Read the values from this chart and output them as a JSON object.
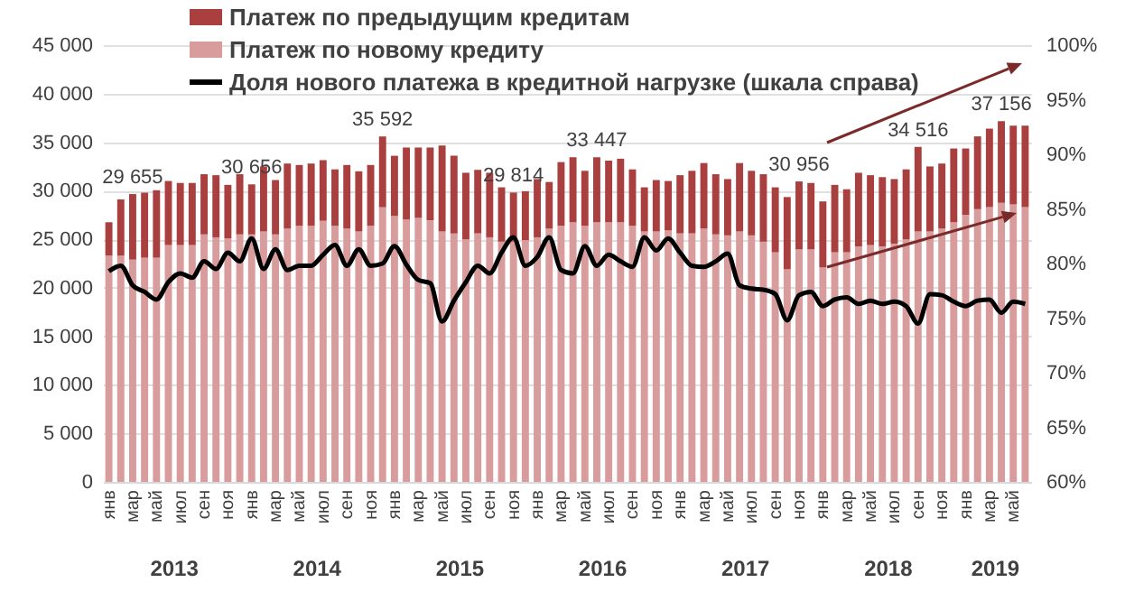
{
  "chart_data": {
    "type": "bar",
    "stacked": true,
    "categories": [
      "янв",
      null,
      "мар",
      null,
      "май",
      null,
      "июл",
      null,
      "сен",
      null,
      "ноя",
      null,
      "янв",
      null,
      "мар",
      null,
      "май",
      null,
      "июл",
      null,
      "сен",
      null,
      "ноя",
      null,
      "янв",
      null,
      "мар",
      null,
      "май",
      null,
      "июл",
      null,
      "сен",
      null,
      "ноя",
      null,
      "янв",
      null,
      "мар",
      null,
      "май",
      null,
      "июл",
      null,
      "сен",
      null,
      "ноя",
      null,
      "янв",
      null,
      "мар",
      null,
      "май",
      null,
      "июл",
      null,
      "сен",
      null,
      "ноя",
      null,
      "янв",
      null,
      "мар",
      null,
      "май",
      null,
      "июл",
      null,
      "сен",
      null,
      "ноя",
      null,
      "янв",
      null,
      "мар",
      null,
      "май",
      null
    ],
    "series": [
      {
        "name": "Платеж по новому кредиту",
        "color": "#d99c9c",
        "values": [
          23300,
          23300,
          22900,
          23100,
          23100,
          24400,
          24400,
          24400,
          25500,
          25200,
          25100,
          25500,
          25500,
          25800,
          25500,
          26100,
          26400,
          26400,
          26900,
          26400,
          26100,
          25800,
          26400,
          28300,
          27400,
          27050,
          27200,
          26950,
          25800,
          25600,
          25000,
          25600,
          25200,
          24750,
          24750,
          24900,
          25200,
          26100,
          26400,
          26750,
          26400,
          26750,
          26750,
          26750,
          26400,
          25800,
          25800,
          25900,
          25600,
          25600,
          26100,
          25500,
          25400,
          25800,
          25400,
          24750,
          23650,
          21900,
          23950,
          23950,
          22100,
          23650,
          23650,
          24250,
          24400,
          24250,
          24550,
          25000,
          25800,
          25800,
          26100,
          26750,
          27500,
          28100,
          28300,
          28750,
          28600,
          28300
        ]
      },
      {
        "name": "Платеж по предыдущим кредитам",
        "color": "#a9403f",
        "values": [
          3450,
          5800,
          6755,
          6700,
          6950,
          6600,
          6400,
          6400,
          6200,
          6400,
          5500,
          6200,
          5156,
          6700,
          5600,
          6700,
          6250,
          6400,
          6250,
          5800,
          6550,
          6200,
          6250,
          7292,
          6200,
          7400,
          7250,
          7500,
          8850,
          8000,
          6850,
          6550,
          6650,
          5600,
          5064,
          5050,
          6000,
          4800,
          6550,
          6700,
          5650,
          6697,
          6350,
          6550,
          5800,
          4550,
          5300,
          5100,
          6000,
          6450,
          6750,
          6200,
          5800,
          7050,
          6650,
          6950,
          6700,
          7450,
          7006,
          6850,
          6800,
          6950,
          6500,
          7600,
          7200,
          7150,
          6650,
          7200,
          8716,
          6700,
          6700,
          7600,
          6850,
          7500,
          8100,
          8406,
          8100,
          8400
        ]
      },
      {
        "name": "Доля нового платежа в кредитной нагрузке (шкала справа)",
        "type": "line",
        "axis": "y2",
        "color": "#000000",
        "values": [
          79.3,
          79.8,
          78.0,
          77.4,
          76.7,
          78.3,
          79.1,
          78.7,
          80.2,
          79.5,
          81.0,
          80.2,
          82.3,
          79.5,
          81.3,
          79.4,
          79.8,
          79.8,
          80.8,
          81.7,
          79.8,
          81.3,
          79.8,
          80.0,
          81.6,
          79.9,
          78.5,
          78.2,
          74.7,
          76.6,
          78.3,
          79.8,
          79.1,
          81.0,
          82.4,
          79.8,
          80.6,
          82.4,
          79.4,
          79.1,
          81.6,
          79.8,
          80.8,
          80.2,
          79.7,
          82.4,
          81.2,
          82.3,
          81.0,
          79.8,
          79.7,
          80.2,
          80.9,
          78.0,
          77.7,
          77.6,
          77.2,
          74.8,
          77.1,
          77.4,
          76.1,
          76.7,
          76.9,
          76.3,
          76.6,
          76.3,
          76.5,
          76.1,
          74.5,
          77.2,
          77.1,
          76.5,
          76.1,
          76.6,
          76.7,
          75.5,
          76.5,
          76.3
        ]
      }
    ],
    "totals": [
      null,
      null,
      "29 655",
      null,
      null,
      null,
      null,
      null,
      null,
      null,
      null,
      null,
      "30 656",
      null,
      null,
      null,
      null,
      null,
      null,
      null,
      null,
      null,
      null,
      "35 592",
      null,
      null,
      null,
      null,
      null,
      null,
      null,
      null,
      null,
      null,
      "29 814",
      null,
      null,
      null,
      null,
      null,
      null,
      "33 447",
      null,
      null,
      null,
      null,
      null,
      null,
      null,
      null,
      null,
      null,
      null,
      null,
      null,
      null,
      null,
      null,
      "30 956",
      null,
      null,
      null,
      null,
      null,
      null,
      null,
      null,
      null,
      "34 516",
      null,
      null,
      null,
      null,
      null,
      null,
      "37 156",
      null,
      null
    ],
    "annotations": [
      "2013",
      "2014",
      "2015",
      "2016",
      "2017",
      "2018",
      "2019"
    ],
    "ylim": [
      0,
      45000
    ],
    "yticks": [
      0,
      {
        "value": 5000,
        "label": "5 000"
      },
      {
        "value": 10000,
        "label": "10 000"
      },
      {
        "value": 15000,
        "label": "15 000"
      },
      {
        "value": 20000,
        "label": "20 000"
      },
      {
        "value": 25000,
        "label": "25 000"
      },
      {
        "value": 30000,
        "label": "30 000"
      },
      {
        "value": 35000,
        "label": "35 000"
      },
      {
        "value": 40000,
        "label": "40 000"
      },
      {
        "value": 45000,
        "label": "45 000"
      }
    ],
    "y2lim": [
      60,
      100
    ],
    "y2ticks": [
      {
        "value": 60,
        "label": "60%"
      },
      {
        "value": 65,
        "label": "65%"
      },
      {
        "value": 70,
        "label": "70%"
      },
      {
        "value": 75,
        "label": "75%"
      },
      {
        "value": 80,
        "label": "80%"
      },
      {
        "value": 85,
        "label": "85%"
      },
      {
        "value": 90,
        "label": "90%"
      },
      {
        "value": 95,
        "label": "95%"
      },
      {
        "value": 100,
        "label": "100%"
      }
    ],
    "grid": "y",
    "legend": "top"
  }
}
